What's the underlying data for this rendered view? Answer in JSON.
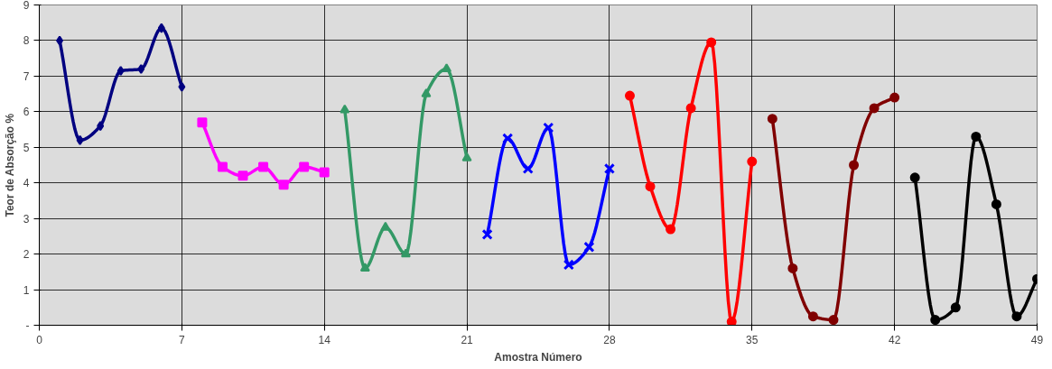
{
  "chart_data": {
    "type": "line",
    "xlabel": "Amostra Número",
    "ylabel": "Teor de Absorção %",
    "xlim": [
      0,
      49
    ],
    "xticks": [
      0,
      7,
      14,
      21,
      28,
      35,
      42,
      49
    ],
    "ylim": [
      0,
      9
    ],
    "yticks": [
      {
        "value": 0,
        "label": "-"
      },
      1,
      2,
      3,
      4,
      5,
      6,
      7,
      8,
      9
    ],
    "grid": true,
    "line_style": "solid",
    "series": [
      {
        "color": "#000080",
        "marker": "diamond",
        "x": [
          1,
          2,
          3,
          4,
          5,
          6,
          7
        ],
        "values": [
          8.0,
          5.2,
          5.6,
          7.15,
          7.2,
          8.35,
          6.7
        ]
      },
      {
        "color": "#ff00ff",
        "marker": "square",
        "x": [
          8,
          9,
          10,
          11,
          12,
          13,
          14
        ],
        "values": [
          5.7,
          4.45,
          4.2,
          4.45,
          3.95,
          4.45,
          4.3
        ]
      },
      {
        "color": "#339966",
        "marker": "triangle",
        "x": [
          15,
          16,
          17,
          18,
          19,
          20,
          21
        ],
        "values": [
          6.05,
          1.6,
          2.75,
          2.0,
          6.5,
          7.2,
          4.7
        ]
      },
      {
        "color": "#0000ff",
        "marker": "cross",
        "x": [
          22,
          23,
          24,
          25,
          26,
          27,
          28
        ],
        "values": [
          2.55,
          5.25,
          4.4,
          5.55,
          1.7,
          2.2,
          4.4
        ]
      },
      {
        "color": "#ff0000",
        "marker": "circle",
        "x": [
          29,
          30,
          31,
          32,
          33,
          34,
          35
        ],
        "values": [
          6.45,
          3.9,
          2.7,
          6.1,
          7.95,
          0.1,
          4.6
        ]
      },
      {
        "color": "#800000",
        "marker": "circle",
        "x": [
          36,
          37,
          38,
          39,
          40,
          41,
          42
        ],
        "values": [
          5.8,
          1.6,
          0.25,
          0.15,
          4.5,
          6.1,
          6.4
        ]
      },
      {
        "color": "#000000",
        "marker": "circle",
        "x": [
          43,
          44,
          45,
          46,
          47,
          48,
          49
        ],
        "values": [
          4.15,
          0.15,
          0.5,
          5.3,
          3.4,
          0.25,
          1.3
        ]
      }
    ]
  }
}
